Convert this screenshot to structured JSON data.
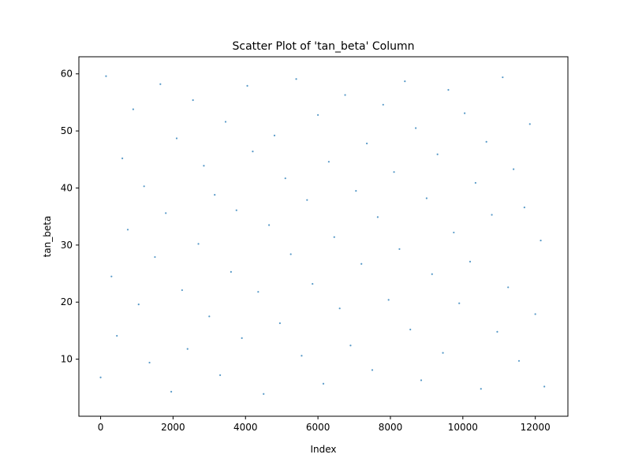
{
  "chart_data": {
    "type": "scatter",
    "title": "Scatter Plot of 'tan_beta' Column",
    "xlabel": "Index",
    "ylabel": "tan_beta",
    "xlim": [
      -600,
      12900
    ],
    "ylim": [
      0,
      63
    ],
    "xticks": [
      0,
      2000,
      4000,
      6000,
      8000,
      10000,
      12000
    ],
    "yticks": [
      10,
      20,
      30,
      40,
      50,
      60
    ],
    "grid": false,
    "legend": "none",
    "marker_color": "#1f77b4",
    "series": [
      {
        "x": [
          0,
          150,
          300,
          450,
          600,
          750,
          900,
          1050,
          1200,
          1350,
          1500,
          1650,
          1800,
          1950,
          2100,
          2250,
          2400,
          2550,
          2700,
          2850,
          3000,
          3150,
          3300,
          3450,
          3600,
          3750,
          3900,
          4050,
          4200,
          4350,
          4500,
          4650,
          4800,
          4950,
          5100,
          5250,
          5400,
          5550,
          5700,
          5850,
          6000,
          6150,
          6300,
          6450,
          6600,
          6750,
          6900,
          7050,
          7200,
          7350,
          7500,
          7650,
          7800,
          7950,
          8100,
          8250,
          8400,
          8550,
          8700,
          8850,
          9000,
          9150,
          9300,
          9450,
          9600,
          9750,
          9900,
          10050,
          10200,
          10350,
          10500,
          10650,
          10800,
          10950,
          11100,
          11250,
          11400,
          11550,
          11700,
          11850,
          12000,
          12150,
          12250
        ],
        "y": [
          6.8,
          59.6,
          24.5,
          14.1,
          45.2,
          32.7,
          53.8,
          19.6,
          40.3,
          9.4,
          27.9,
          58.2,
          35.6,
          4.3,
          48.7,
          22.1,
          11.8,
          55.4,
          30.2,
          43.9,
          17.5,
          38.8,
          7.2,
          51.6,
          25.3,
          36.1,
          13.7,
          57.9,
          46.4,
          21.8,
          3.9,
          33.5,
          49.2,
          16.3,
          41.7,
          28.4,
          59.1,
          10.6,
          37.9,
          23.2,
          52.8,
          5.7,
          44.6,
          31.4,
          18.9,
          56.3,
          12.4,
          39.5,
          26.7,
          47.8,
          8.1,
          34.9,
          54.6,
          20.4,
          42.8,
          29.3,
          58.7,
          15.2,
          50.5,
          6.3,
          38.2,
          24.9,
          45.9,
          11.1,
          57.2,
          32.2,
          19.8,
          53.1,
          27.1,
          40.9,
          4.8,
          48.1,
          35.3,
          14.8,
          59.4,
          22.6,
          43.3,
          9.7,
          36.6,
          51.2,
          17.9,
          30.8,
          5.2
        ]
      }
    ]
  }
}
